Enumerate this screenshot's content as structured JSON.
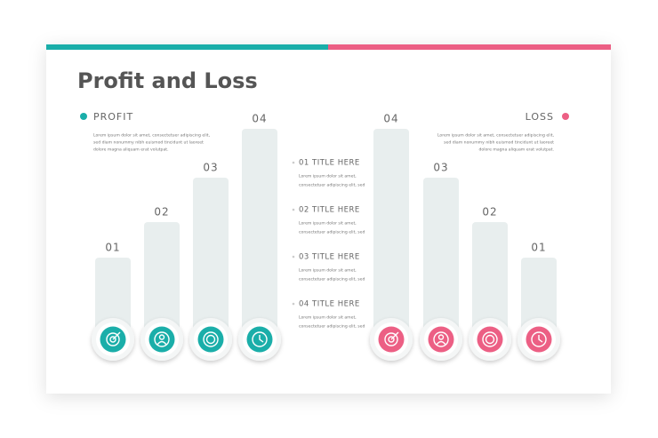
{
  "title": "Profit and Loss",
  "profit": {
    "label": "PROFIT",
    "text": [
      "Lorem ipsum dolor sit amet, consectetuer adipiscing elit,",
      "sed diam nonummy nibh euismod tincidunt ut laoreet",
      "dolore magna aliquam erat volutpat."
    ]
  },
  "loss": {
    "label": "LOSS",
    "text": [
      "Lorem ipsum dolor sit amet, consectetuer adipiscing elit,",
      "sed diam nonummy nibh euismod tincidunt ut laoreet",
      "dolore magna aliquam erat volutpat."
    ]
  },
  "profit_bars": [
    "01",
    "02",
    "03",
    "04"
  ],
  "loss_bars": [
    "04",
    "03",
    "02",
    "01"
  ],
  "items": [
    {
      "title": "01 TITLE HERE",
      "text": [
        "Lorem ipsum dolor sit amet,",
        "consectetuer adipiscing elit, sed"
      ]
    },
    {
      "title": "02 TITLE HERE",
      "text": [
        "Lorem ipsum dolor sit amet,",
        "consectetuer adipiscing elit, sed"
      ]
    },
    {
      "title": "03 TITLE HERE",
      "text": [
        "Lorem ipsum dolor sit amet,",
        "consectetuer adipiscing elit, sed"
      ]
    },
    {
      "title": "04 TITLE HERE",
      "text": [
        "Lorem ipsum dolor sit amet,",
        "consectetuer adipiscing elit, sed"
      ]
    }
  ]
}
